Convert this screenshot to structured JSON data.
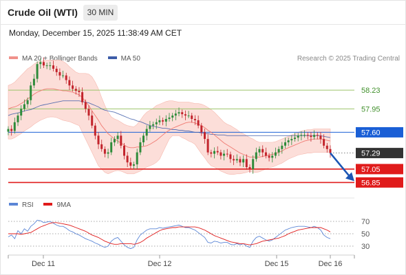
{
  "header": {
    "title": "Crude Oil (WTI)",
    "timeframe": "30 MIN",
    "datetime": "Monday, December 15, 2025 11:38:49 AM CET"
  },
  "legend": {
    "ma20_label": "MA 20 + Bollinger Bands",
    "ma50_label": "MA 50",
    "credit": "Research © 2025 Trading Central",
    "rsi_label": "RSI",
    "rsi_ma_label": "9MA"
  },
  "colors": {
    "bollinger_fill": "#fbd3cc",
    "ma20": "#f07a72",
    "ma50": "#3d5ca8",
    "candle_up": "#2e8b3a",
    "candle_down": "#c2242c",
    "resistance": "#9cc46a",
    "pivot": "#1a5fd6",
    "support": "#e01b1b",
    "last_price_tag": "#333333",
    "rsi_line": "#5b86d6",
    "rsi_ma": "#e01b1b",
    "arrow": "#1c56b4"
  },
  "chart_data": [
    {
      "type": "candlestick",
      "ylim": [
        56.7,
        58.55
      ],
      "x_tick_labels": [
        "Dec 11",
        "Dec 12",
        "Dec 15",
        "Dec 16"
      ],
      "levels": [
        {
          "label": "58.23",
          "value": 58.23,
          "kind": "resistance"
        },
        {
          "label": "57.95",
          "value": 57.95,
          "kind": "resistance"
        },
        {
          "label": "57.60",
          "value": 57.6,
          "kind": "pivot"
        },
        {
          "label": "57.29",
          "value": 57.29,
          "kind": "last"
        },
        {
          "label": "57.05",
          "value": 57.05,
          "kind": "support"
        },
        {
          "label": "56.85",
          "value": 56.85,
          "kind": "support"
        }
      ],
      "closes": [
        57.65,
        57.62,
        57.75,
        57.85,
        57.95,
        58.02,
        58.08,
        58.3,
        58.4,
        58.62,
        58.65,
        58.6,
        58.6,
        58.6,
        58.55,
        58.5,
        58.45,
        58.45,
        58.38,
        58.3,
        58.25,
        58.22,
        58.2,
        58.05,
        57.95,
        57.85,
        57.7,
        57.55,
        57.42,
        57.35,
        57.28,
        57.3,
        57.45,
        57.5,
        57.55,
        57.4,
        57.25,
        57.15,
        57.1,
        57.12,
        57.3,
        57.45,
        57.55,
        57.65,
        57.7,
        57.72,
        57.75,
        57.78,
        57.76,
        57.8,
        57.82,
        57.85,
        57.88,
        57.9,
        57.87,
        57.85,
        57.85,
        57.8,
        57.78,
        57.7,
        57.6,
        57.5,
        57.3,
        57.28,
        57.32,
        57.3,
        57.25,
        57.28,
        57.27,
        57.2,
        57.18,
        57.2,
        57.15,
        57.2,
        57.08,
        57.05,
        57.2,
        57.3,
        57.35,
        57.3,
        57.25,
        57.22,
        57.25,
        57.3,
        57.35,
        57.4,
        57.45,
        57.48,
        57.5,
        57.52,
        57.55,
        57.56,
        57.56,
        57.55,
        57.53,
        57.56,
        57.55,
        57.5,
        57.4,
        57.35,
        57.29
      ],
      "ma20": [
        57.95,
        57.97,
        57.98,
        58.0,
        58.03,
        58.06,
        58.1,
        58.13,
        58.17,
        58.2,
        58.22,
        58.24,
        58.25,
        58.25,
        58.25,
        58.24,
        58.23,
        58.22,
        58.22,
        58.21,
        58.2,
        58.18,
        58.16,
        58.12,
        58.06,
        58.0,
        57.92,
        57.85,
        57.78,
        57.7,
        57.64,
        57.58,
        57.54,
        57.5,
        57.47,
        57.44,
        57.41,
        57.38,
        57.37,
        57.37,
        57.38,
        57.38,
        57.39,
        57.4,
        57.42,
        57.45,
        57.48,
        57.52,
        57.56,
        57.6,
        57.63,
        57.66,
        57.68,
        57.7,
        57.72,
        57.74,
        57.75,
        57.75,
        57.74,
        57.72,
        57.7,
        57.67,
        57.63,
        57.6,
        57.56,
        57.52,
        57.48,
        57.44,
        57.41,
        57.38,
        57.35,
        57.32,
        57.29,
        57.27,
        57.25,
        57.23,
        57.23,
        57.23,
        57.23,
        57.24,
        57.25,
        57.26,
        57.27,
        57.28,
        57.3,
        57.32,
        57.35,
        57.37,
        57.39,
        57.41,
        57.43,
        57.45,
        57.47,
        57.48,
        57.49,
        57.5,
        57.5,
        57.5,
        57.49,
        57.48,
        57.47
      ],
      "bb_upper": [
        58.3,
        58.32,
        58.35,
        58.4,
        58.45,
        58.5,
        58.55,
        58.58,
        58.62,
        58.65,
        58.66,
        58.67,
        58.68,
        58.68,
        58.68,
        58.68,
        58.68,
        58.66,
        58.63,
        58.58,
        58.54,
        58.5,
        58.48,
        58.48,
        58.48,
        58.47,
        58.43,
        58.35,
        58.25,
        58.12,
        58.0,
        57.9,
        57.83,
        57.8,
        57.78,
        57.75,
        57.72,
        57.7,
        57.69,
        57.68,
        57.72,
        57.78,
        57.85,
        57.9,
        57.93,
        57.96,
        58.0,
        58.02,
        58.04,
        58.06,
        58.07,
        58.07,
        58.06,
        58.05,
        58.05,
        58.05,
        58.05,
        58.04,
        58.03,
        58.03,
        58.02,
        58.0,
        57.97,
        57.94,
        57.9,
        57.85,
        57.8,
        57.75,
        57.72,
        57.7,
        57.67,
        57.64,
        57.6,
        57.58,
        57.55,
        57.52,
        57.5,
        57.47,
        57.45,
        57.45,
        57.45,
        57.45,
        57.45,
        57.46,
        57.48,
        57.5,
        57.52,
        57.54,
        57.56,
        57.58,
        57.6,
        57.62,
        57.63,
        57.64,
        57.64,
        57.65,
        57.65,
        57.65,
        57.65,
        57.65,
        57.65
      ],
      "bb_lower": [
        57.5,
        57.5,
        57.52,
        57.55,
        57.58,
        57.62,
        57.65,
        57.68,
        57.72,
        57.75,
        57.78,
        57.8,
        57.82,
        57.83,
        57.83,
        57.82,
        57.8,
        57.78,
        57.77,
        57.76,
        57.74,
        57.72,
        57.7,
        57.6,
        57.5,
        57.4,
        57.3,
        57.2,
        57.1,
        57.05,
        57.0,
        56.98,
        57.0,
        57.02,
        57.03,
        57.02,
        57.0,
        56.98,
        56.98,
        56.98,
        57.0,
        57.02,
        57.05,
        57.08,
        57.1,
        57.12,
        57.15,
        57.2,
        57.3,
        57.4,
        57.5,
        57.55,
        57.55,
        57.55,
        57.52,
        57.5,
        57.47,
        57.45,
        57.42,
        57.35,
        57.28,
        57.22,
        57.15,
        57.1,
        57.08,
        57.05,
        57.02,
        57.0,
        56.98,
        56.97,
        56.97,
        56.98,
        56.98,
        56.99,
        57.0,
        57.02,
        57.0,
        57.0,
        57.01,
        57.03,
        57.05,
        57.07,
        57.08,
        57.1,
        57.12,
        57.14,
        57.17,
        57.2,
        57.22,
        57.24,
        57.26,
        57.27,
        57.28,
        57.29,
        57.29,
        57.3,
        57.3,
        57.3,
        57.3,
        57.3,
        57.3
      ],
      "ma50": [
        57.85,
        57.87,
        57.88,
        57.89,
        57.9,
        57.92,
        57.93,
        57.94,
        57.96,
        57.98,
        58.0,
        58.01,
        58.02,
        58.03,
        58.04,
        58.05,
        58.06,
        58.07,
        58.07,
        58.07,
        58.07,
        58.07,
        58.07,
        58.06,
        58.05,
        58.04,
        58.02,
        58.0,
        57.98,
        57.95,
        57.93,
        57.92,
        57.91,
        57.9,
        57.88,
        57.86,
        57.84,
        57.82,
        57.8,
        57.79,
        57.77,
        57.76,
        57.74,
        57.72,
        57.7,
        57.69,
        57.68,
        57.67,
        57.66,
        57.66,
        57.65,
        57.64,
        57.64,
        57.63,
        57.63,
        57.62,
        57.62,
        57.61,
        57.6,
        57.6,
        57.59,
        57.58,
        57.58,
        57.57,
        57.57,
        57.56,
        57.56,
        57.56,
        57.55,
        57.55,
        57.55,
        57.55,
        57.55,
        57.55,
        57.55,
        57.55,
        57.55,
        57.55,
        57.55,
        57.55,
        57.55,
        57.55,
        57.55,
        57.55,
        57.55,
        57.55,
        57.55,
        57.55,
        57.55,
        57.55,
        57.55,
        57.55,
        57.55,
        57.55,
        57.55,
        57.55,
        57.55,
        57.55,
        57.54,
        57.53,
        57.52
      ]
    },
    {
      "type": "line",
      "ylim": [
        20,
        80
      ],
      "y_ticks": [
        70,
        50,
        30
      ],
      "series": [
        {
          "name": "RSI",
          "values": [
            45,
            48,
            42,
            55,
            50,
            58,
            54,
            62,
            66,
            72,
            71,
            68,
            69,
            70,
            67,
            64,
            62,
            62,
            59,
            55,
            53,
            50,
            48,
            45,
            42,
            40,
            38,
            35,
            33,
            30,
            28,
            30,
            38,
            42,
            44,
            38,
            32,
            28,
            26,
            28,
            40,
            48,
            52,
            56,
            58,
            58,
            58,
            60,
            59,
            60,
            61,
            62,
            63,
            64,
            62,
            60,
            60,
            58,
            56,
            52,
            48,
            44,
            36,
            35,
            38,
            37,
            35,
            36,
            36,
            33,
            32,
            34,
            32,
            34,
            30,
            28,
            38,
            44,
            46,
            43,
            40,
            38,
            40,
            44,
            48,
            52,
            56,
            58,
            60,
            61,
            62,
            62,
            62,
            61,
            60,
            62,
            60,
            56,
            48,
            44,
            42
          ]
        },
        {
          "name": "9MA",
          "values": [
            50,
            50,
            50,
            50,
            49,
            50,
            51,
            52,
            55,
            58,
            61,
            63,
            65,
            67,
            68,
            68,
            67,
            66,
            65,
            64,
            62,
            60,
            58,
            56,
            54,
            51,
            48,
            46,
            44,
            41,
            38,
            36,
            34,
            33,
            33,
            34,
            34,
            34,
            34,
            33,
            34,
            36,
            39,
            43,
            46,
            49,
            52,
            55,
            57,
            58,
            59,
            60,
            60,
            61,
            61,
            61,
            61,
            61,
            61,
            60,
            58,
            56,
            53,
            50,
            47,
            45,
            43,
            41,
            39,
            37,
            36,
            35,
            34,
            34,
            33,
            32,
            33,
            34,
            36,
            38,
            39,
            40,
            41,
            42,
            43,
            45,
            47,
            50,
            52,
            54,
            56,
            57,
            58,
            59,
            60,
            60,
            60,
            60,
            58,
            56,
            53
          ]
        }
      ]
    }
  ]
}
